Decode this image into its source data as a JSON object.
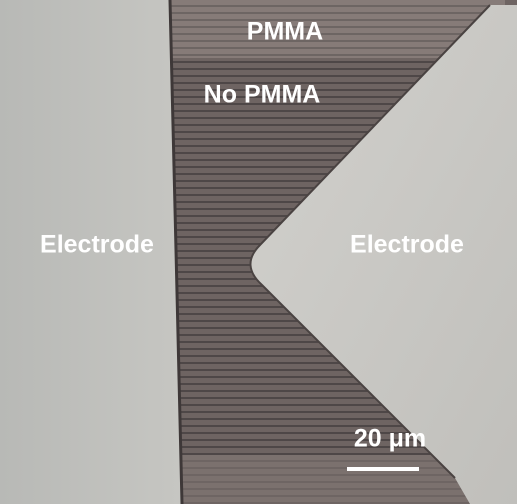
{
  "labels": {
    "pmma": "PMMA",
    "no_pmma": "No PMMA",
    "electrode_left": "Electrode",
    "electrode_right": "Electrode",
    "scale_bar": "20 μm"
  }
}
